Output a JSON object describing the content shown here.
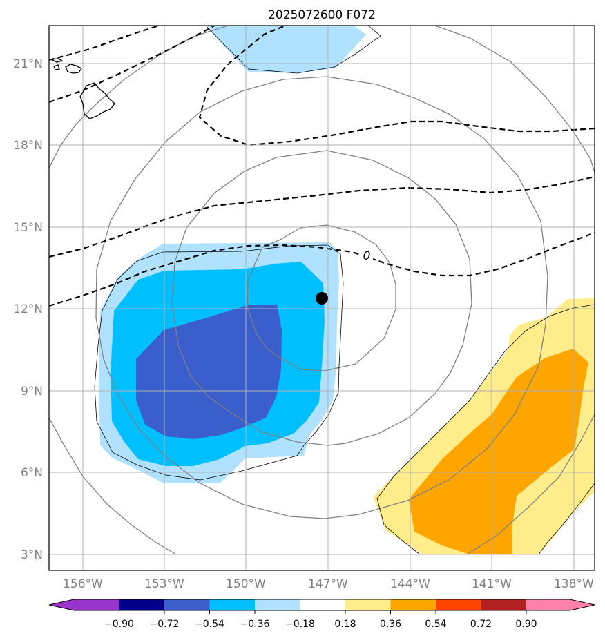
{
  "title": "2025072600 F072",
  "longitude_labels": [
    "156°W",
    "153°W",
    "150°W",
    "147°W",
    "144°W",
    "141°W",
    "138°W"
  ],
  "latitude_labels": [
    "21°N",
    "18°N",
    "15°N",
    "12°N",
    "9°N",
    "6°N",
    "3°N"
  ],
  "contour_label": "0",
  "colorbar": {
    "tick_labels": [
      "−0.90",
      "−0.72",
      "−0.54",
      "−0.36",
      "−0.18",
      "0.18",
      "0.36",
      "0.54",
      "0.72",
      "0.90"
    ],
    "colors": [
      "#9933cc",
      "#00008b",
      "#3a5fcd",
      "#00bfff",
      "#b0e2ff",
      "#ffffff",
      "#ffec8b",
      "#ffa500",
      "#ff4500",
      "#b22222",
      "#ff82ab"
    ]
  },
  "center_marker": {
    "lon": -147.2,
    "lat": 12.4
  },
  "map_extent": {
    "lon": [
      -157.2,
      -137.2
    ],
    "lat": [
      2.4,
      22.4
    ]
  },
  "map_colors": {
    "negative_fill": [
      "#b0e2ff",
      "#00bfff",
      "#3a5fcd"
    ],
    "positive_fill": [
      "#ffec8b",
      "#ffa500"
    ],
    "range_rings": "#808080",
    "coastline": "#000000",
    "gridlines": "#b0b0b0"
  }
}
